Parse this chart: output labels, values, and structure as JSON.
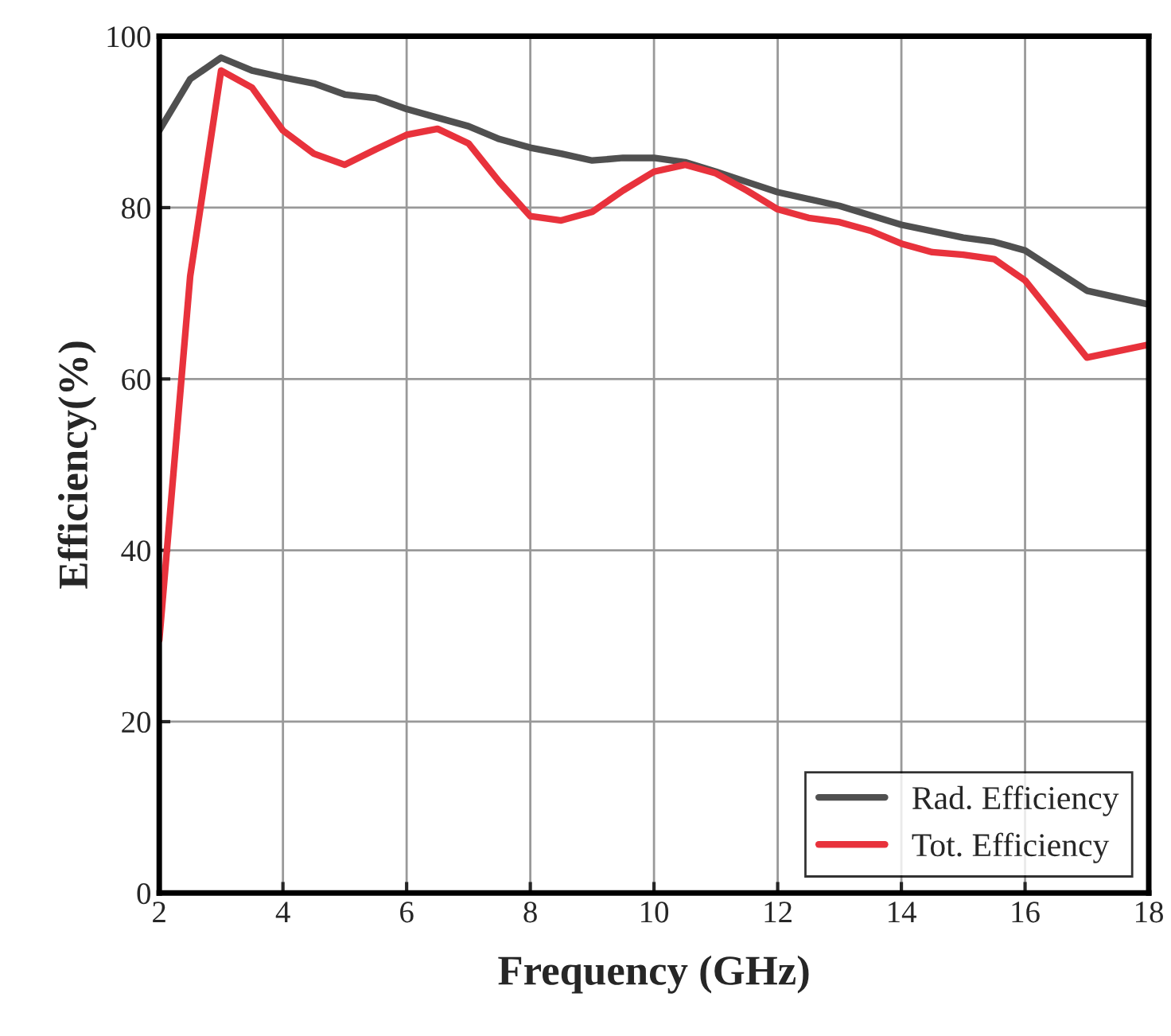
{
  "chart_data": {
    "type": "line",
    "xlabel": "Frequency (GHz)",
    "ylabel": "Efficiency(%)",
    "xlim": [
      2,
      18
    ],
    "xticks": [
      2,
      4,
      6,
      8,
      10,
      12,
      14,
      16,
      18
    ],
    "ylim": [
      0,
      100
    ],
    "yticks": [
      0,
      20,
      40,
      60,
      80,
      100
    ],
    "grid": true,
    "legend": "bottom right",
    "line_style": "solid",
    "series": [
      {
        "name": "Rad. Efficiency",
        "color": "#505050",
        "x": [
          2,
          2.5,
          3,
          3.5,
          4,
          4.5,
          5,
          5.5,
          6,
          6.5,
          7,
          7.5,
          8,
          8.5,
          9,
          9.5,
          10,
          10.5,
          11,
          11.5,
          12,
          13,
          14,
          15,
          15.5,
          16,
          17,
          18
        ],
        "values": [
          89,
          95,
          97.5,
          96,
          95.2,
          94.5,
          93.2,
          92.8,
          91.5,
          90.5,
          89.5,
          88,
          87,
          86.3,
          85.5,
          85.8,
          85.8,
          85.3,
          84.2,
          83,
          81.8,
          80.2,
          78,
          76.5,
          76,
          75,
          70.3,
          68.7
        ]
      },
      {
        "name": "Tot. Efficiency",
        "color": "#e8323c",
        "x": [
          2,
          2.5,
          3,
          3.5,
          4,
          4.5,
          5,
          5.5,
          6,
          6.5,
          7,
          7.5,
          8,
          8.5,
          9,
          9.5,
          10,
          10.5,
          11,
          11.5,
          12,
          12.5,
          13,
          13.5,
          14,
          14.5,
          15,
          15.5,
          16,
          17,
          18
        ],
        "values": [
          29.5,
          72,
          96,
          94,
          89,
          86.3,
          85,
          86.8,
          88.5,
          89.2,
          87.5,
          83,
          79,
          78.5,
          79.5,
          82,
          84.2,
          85,
          84,
          82,
          79.8,
          78.8,
          78.3,
          77.3,
          75.8,
          74.8,
          74.5,
          74,
          71.5,
          62.5,
          64
        ]
      }
    ]
  }
}
